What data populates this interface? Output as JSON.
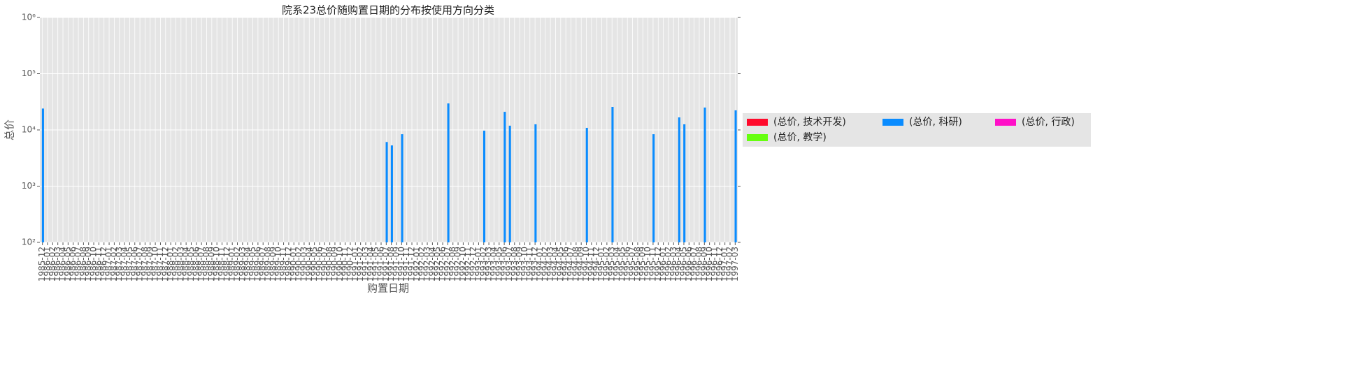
{
  "chart_data": {
    "type": "bar",
    "title": "院系23总价随购置日期的分布按使用方向分类",
    "x_label": "购置日期",
    "y_label": "总价",
    "log_scale": true,
    "grid": true,
    "legend_loc": "center right outside",
    "legend_ncol": 3,
    "ylim": [
      100,
      1000000
    ],
    "yticks": [
      {
        "value": 100,
        "label": "10²"
      },
      {
        "value": 1000,
        "label": "10³"
      },
      {
        "value": 10000,
        "label": "10⁴"
      },
      {
        "value": 100000,
        "label": "10⁵"
      },
      {
        "value": 1000000,
        "label": "10⁶"
      }
    ],
    "categories": [
      "1985-12",
      "1986-01",
      "1986-02",
      "1986-03",
      "1986-04",
      "1986-05",
      "1986-06",
      "1986-07",
      "1986-08",
      "1986-09",
      "1986-10",
      "1986-11",
      "1986-12",
      "1987-01",
      "1987-02",
      "1987-03",
      "1987-04",
      "1987-05",
      "1987-06",
      "1987-07",
      "1987-08",
      "1987-09",
      "1987-10",
      "1987-11",
      "1987-12",
      "1988-01",
      "1988-02",
      "1988-03",
      "1988-04",
      "1988-05",
      "1988-06",
      "1988-07",
      "1988-08",
      "1988-09",
      "1988-10",
      "1988-11",
      "1988-12",
      "1989-01",
      "1989-02",
      "1989-03",
      "1989-04",
      "1989-05",
      "1989-06",
      "1989-07",
      "1989-08",
      "1989-09",
      "1989-10",
      "1989-11",
      "1989-12",
      "1990-01",
      "1990-02",
      "1990-03",
      "1990-04",
      "1990-05",
      "1990-06",
      "1990-07",
      "1990-08",
      "1990-09",
      "1990-10",
      "1990-11",
      "1990-12",
      "1991-01",
      "1991-02",
      "1991-03",
      "1991-04",
      "1991-05",
      "1991-06",
      "1991-07",
      "1991-08",
      "1991-09",
      "1991-10",
      "1991-11",
      "1991-12",
      "1992-01",
      "1992-02",
      "1992-03",
      "1992-04",
      "1992-05",
      "1992-06",
      "1992-07",
      "1992-08",
      "1992-09",
      "1992-10",
      "1992-11",
      "1992-12",
      "1993-01",
      "1993-02",
      "1993-03",
      "1993-04",
      "1993-05",
      "1993-06",
      "1993-07",
      "1993-08",
      "1993-09",
      "1993-10",
      "1993-11",
      "1993-12",
      "1994-01",
      "1994-02",
      "1994-03",
      "1994-04",
      "1994-05",
      "1994-06",
      "1994-07",
      "1994-08",
      "1994-09",
      "1994-10",
      "1994-11",
      "1994-12",
      "1995-01",
      "1995-02",
      "1995-03",
      "1995-04",
      "1995-05",
      "1995-06",
      "1995-07",
      "1995-08",
      "1995-09",
      "1995-10",
      "1995-11",
      "1995-12",
      "1996-01",
      "1996-02",
      "1996-03",
      "1996-04",
      "1996-05",
      "1996-06",
      "1996-07",
      "1996-08",
      "1996-09",
      "1996-10",
      "1996-11",
      "1996-12",
      "1997-01",
      "1997-02",
      "1997-03"
    ],
    "series": [
      {
        "name": "(总价, 技术开发)",
        "color": "#ff0a2c",
        "values": [
          null,
          null,
          null,
          null,
          null,
          null,
          null,
          null,
          null,
          null,
          null,
          null,
          null,
          null,
          null,
          null,
          null,
          null,
          null,
          null,
          null,
          null,
          null,
          null,
          null,
          null,
          null,
          null,
          null,
          null,
          null,
          null,
          null,
          null,
          null,
          null,
          null,
          null,
          null,
          null,
          null,
          null,
          null,
          null,
          null,
          null,
          null,
          null,
          null,
          null,
          null,
          null,
          null,
          null,
          null,
          null,
          null,
          null,
          null,
          null,
          null,
          null,
          null,
          null,
          null,
          null,
          null,
          null,
          null,
          null,
          null,
          null,
          null,
          null,
          null,
          null,
          null,
          null,
          null,
          null,
          null,
          null,
          null,
          null,
          null,
          null,
          null,
          null,
          null,
          null,
          null,
          null,
          null,
          null,
          null,
          null,
          null,
          null,
          null,
          null,
          null,
          null,
          null,
          null,
          null,
          null,
          null,
          null,
          null,
          null,
          null,
          null,
          null,
          null,
          null,
          null,
          null,
          null,
          null,
          null,
          null,
          null,
          null,
          null,
          null,
          null,
          null,
          null,
          null,
          null,
          null,
          null,
          null,
          null,
          null,
          null
        ]
      },
      {
        "name": "(总价, 教学)",
        "color": "#66ff10",
        "values": [
          null,
          null,
          null,
          null,
          null,
          null,
          null,
          null,
          null,
          null,
          null,
          null,
          null,
          null,
          null,
          null,
          null,
          null,
          null,
          null,
          null,
          null,
          null,
          null,
          null,
          null,
          null,
          null,
          null,
          null,
          null,
          null,
          null,
          null,
          null,
          null,
          null,
          null,
          null,
          null,
          null,
          null,
          null,
          null,
          null,
          null,
          null,
          null,
          null,
          null,
          null,
          null,
          null,
          null,
          null,
          null,
          null,
          null,
          null,
          null,
          null,
          null,
          null,
          null,
          null,
          null,
          null,
          null,
          null,
          null,
          null,
          null,
          null,
          null,
          null,
          null,
          null,
          null,
          null,
          null,
          null,
          null,
          null,
          null,
          null,
          null,
          null,
          null,
          null,
          null,
          null,
          null,
          null,
          null,
          null,
          null,
          null,
          null,
          null,
          null,
          null,
          null,
          null,
          null,
          null,
          null,
          null,
          null,
          null,
          null,
          null,
          null,
          null,
          null,
          null,
          null,
          null,
          null,
          null,
          null,
          null,
          null,
          null,
          null,
          null,
          null,
          null,
          null,
          null,
          null,
          null,
          null,
          null,
          null,
          null,
          null
        ]
      },
      {
        "name": "(总价, 科研)",
        "color": "#0a8cff",
        "values": [
          24000,
          null,
          null,
          null,
          null,
          null,
          null,
          null,
          null,
          null,
          null,
          null,
          null,
          null,
          null,
          null,
          null,
          null,
          null,
          null,
          null,
          null,
          null,
          null,
          null,
          null,
          null,
          null,
          null,
          null,
          null,
          null,
          null,
          null,
          null,
          null,
          null,
          null,
          null,
          null,
          null,
          null,
          null,
          null,
          null,
          null,
          null,
          null,
          null,
          null,
          null,
          null,
          null,
          null,
          null,
          null,
          null,
          null,
          null,
          null,
          null,
          null,
          null,
          null,
          null,
          null,
          null,
          6100,
          5300,
          null,
          8400,
          null,
          null,
          null,
          null,
          null,
          null,
          null,
          null,
          29600,
          null,
          null,
          null,
          null,
          null,
          null,
          9700,
          null,
          null,
          null,
          21000,
          11900,
          null,
          null,
          null,
          null,
          12600,
          null,
          null,
          null,
          null,
          null,
          null,
          null,
          null,
          null,
          10900,
          null,
          null,
          null,
          null,
          25700,
          null,
          null,
          null,
          null,
          null,
          null,
          null,
          8400,
          null,
          null,
          null,
          null,
          16700,
          12600,
          null,
          null,
          null,
          25000,
          null,
          null,
          null,
          null,
          null,
          22300
        ]
      },
      {
        "name": "(总价, 行政)",
        "color": "#ff10c8",
        "values": [
          null,
          null,
          null,
          null,
          null,
          null,
          null,
          null,
          null,
          null,
          null,
          null,
          null,
          null,
          null,
          null,
          null,
          null,
          null,
          null,
          null,
          null,
          null,
          null,
          null,
          null,
          null,
          null,
          null,
          null,
          null,
          null,
          null,
          null,
          null,
          null,
          null,
          null,
          null,
          null,
          null,
          null,
          null,
          null,
          null,
          null,
          null,
          null,
          null,
          null,
          null,
          null,
          null,
          null,
          null,
          null,
          null,
          null,
          null,
          null,
          null,
          null,
          null,
          null,
          null,
          null,
          null,
          null,
          null,
          null,
          null,
          null,
          null,
          null,
          null,
          null,
          null,
          null,
          null,
          null,
          null,
          null,
          null,
          null,
          null,
          null,
          null,
          null,
          null,
          null,
          null,
          null,
          null,
          null,
          null,
          null,
          null,
          null,
          null,
          null,
          null,
          null,
          null,
          null,
          null,
          null,
          null,
          null,
          null,
          null,
          null,
          null,
          null,
          null,
          null,
          null,
          null,
          null,
          null,
          null,
          null,
          null,
          null,
          null,
          null,
          null,
          null,
          null,
          null,
          null,
          null,
          null,
          null,
          null,
          null,
          null
        ]
      }
    ]
  }
}
